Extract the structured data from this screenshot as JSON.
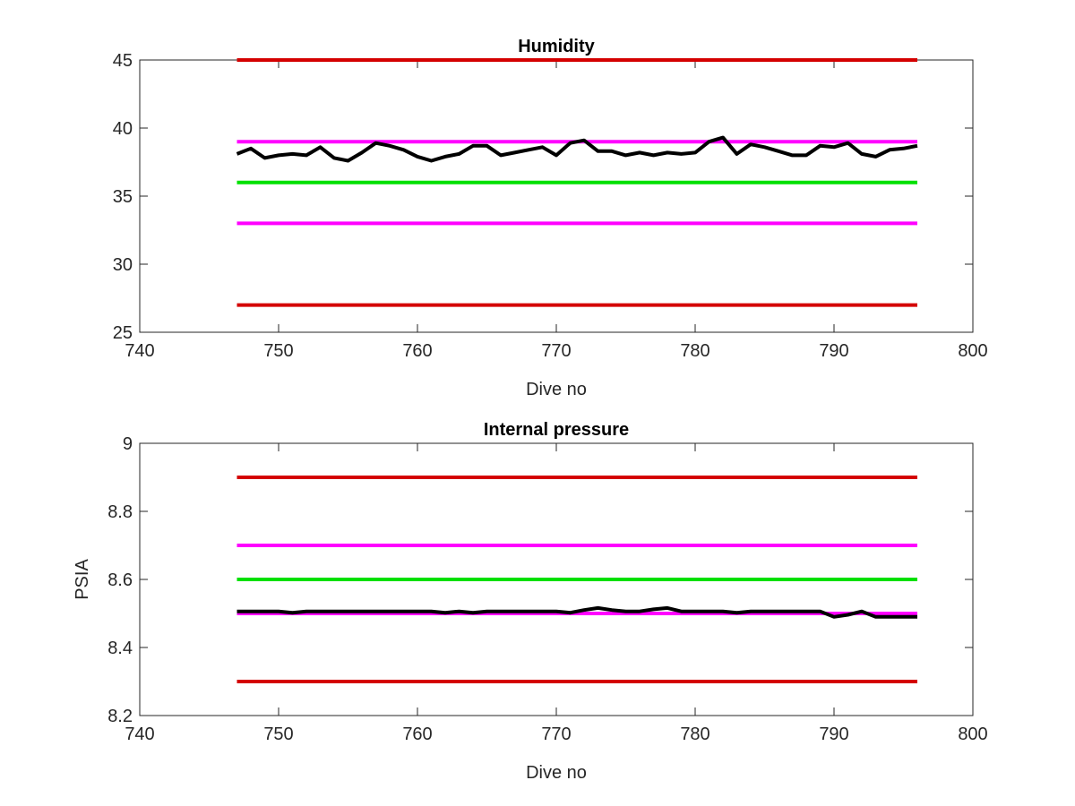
{
  "chart_data": [
    {
      "type": "line",
      "title": "Humidity",
      "xlabel": "Dive no",
      "ylabel": "",
      "xlim": [
        740,
        800
      ],
      "ylim": [
        25,
        45
      ],
      "xticks": [
        740,
        750,
        760,
        770,
        780,
        790,
        800
      ],
      "yticks": [
        25,
        30,
        35,
        40,
        45
      ],
      "grid": false,
      "reference_lines": [
        {
          "y": 45,
          "x_range": [
            747,
            796
          ],
          "color": "#d40000"
        },
        {
          "y": 39,
          "x_range": [
            747,
            796
          ],
          "color": "#ff00ff"
        },
        {
          "y": 36,
          "x_range": [
            747,
            796
          ],
          "color": "#00e000"
        },
        {
          "y": 33,
          "x_range": [
            747,
            796
          ],
          "color": "#ff00ff"
        },
        {
          "y": 27,
          "x_range": [
            747,
            796
          ],
          "color": "#d40000"
        }
      ],
      "series": [
        {
          "color": "#000000",
          "x": [
            747,
            748,
            749,
            750,
            751,
            752,
            753,
            754,
            755,
            756,
            757,
            758,
            759,
            760,
            761,
            762,
            763,
            764,
            765,
            766,
            767,
            768,
            769,
            770,
            771,
            772,
            773,
            774,
            775,
            776,
            777,
            778,
            779,
            780,
            781,
            782,
            783,
            784,
            785,
            786,
            787,
            788,
            789,
            790,
            791,
            792,
            793,
            794,
            795,
            796
          ],
          "y": [
            38.1,
            38.5,
            37.8,
            38.0,
            38.1,
            38.0,
            38.6,
            37.8,
            37.6,
            38.2,
            38.9,
            38.7,
            38.4,
            37.9,
            37.6,
            37.9,
            38.1,
            38.7,
            38.7,
            38.0,
            38.2,
            38.4,
            38.6,
            38.0,
            38.9,
            39.1,
            38.3,
            38.3,
            38.0,
            38.2,
            38.0,
            38.2,
            38.1,
            38.2,
            39.0,
            39.3,
            38.1,
            38.8,
            38.6,
            38.3,
            38.0,
            38.0,
            38.7,
            38.6,
            38.9,
            38.1,
            37.9,
            38.4,
            38.5,
            38.7
          ]
        }
      ]
    },
    {
      "type": "line",
      "title": "Internal pressure",
      "xlabel": "Dive no",
      "ylabel": "PSIA",
      "xlim": [
        740,
        800
      ],
      "ylim": [
        8.2,
        9
      ],
      "xticks": [
        740,
        750,
        760,
        770,
        780,
        790,
        800
      ],
      "yticks": [
        8.2,
        8.4,
        8.6,
        8.8,
        9
      ],
      "grid": false,
      "reference_lines": [
        {
          "y": 8.9,
          "x_range": [
            747,
            796
          ],
          "color": "#d40000"
        },
        {
          "y": 8.7,
          "x_range": [
            747,
            796
          ],
          "color": "#ff00ff"
        },
        {
          "y": 8.6,
          "x_range": [
            747,
            796
          ],
          "color": "#00e000"
        },
        {
          "y": 8.5,
          "x_range": [
            747,
            796
          ],
          "color": "#ff00ff"
        },
        {
          "y": 8.3,
          "x_range": [
            747,
            796
          ],
          "color": "#d40000"
        }
      ],
      "series": [
        {
          "color": "#000000",
          "x": [
            747,
            748,
            749,
            750,
            751,
            752,
            753,
            754,
            755,
            756,
            757,
            758,
            759,
            760,
            761,
            762,
            763,
            764,
            765,
            766,
            767,
            768,
            769,
            770,
            771,
            772,
            773,
            774,
            775,
            776,
            777,
            778,
            779,
            780,
            781,
            782,
            783,
            784,
            785,
            786,
            787,
            788,
            789,
            790,
            791,
            792,
            793,
            794,
            795,
            796
          ],
          "y": [
            8.506,
            8.506,
            8.506,
            8.506,
            8.502,
            8.506,
            8.506,
            8.506,
            8.506,
            8.506,
            8.506,
            8.506,
            8.506,
            8.506,
            8.506,
            8.502,
            8.506,
            8.502,
            8.506,
            8.506,
            8.506,
            8.506,
            8.506,
            8.506,
            8.502,
            8.51,
            8.516,
            8.51,
            8.506,
            8.506,
            8.512,
            8.516,
            8.506,
            8.506,
            8.506,
            8.506,
            8.502,
            8.506,
            8.506,
            8.506,
            8.506,
            8.506,
            8.506,
            8.49,
            8.496,
            8.506,
            8.49,
            8.49,
            8.49,
            8.49
          ]
        }
      ]
    }
  ]
}
